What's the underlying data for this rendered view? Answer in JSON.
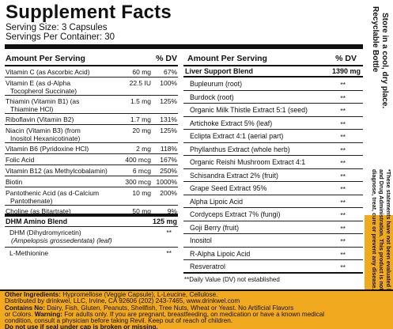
{
  "panel": {
    "title": "Supplement Facts",
    "serving_size": "Serving Size: 3 Capsules",
    "servings_per_container": "Servings Per Container: 30"
  },
  "left_column": {
    "header_name": "Amount Per Serving",
    "header_dv": "% DV",
    "rows": [
      {
        "name": "Vitamin C (as Ascorbic Acid)",
        "amount": "60 mg",
        "dv": "67%"
      },
      {
        "name": "Vitamin E (as d-Alpha",
        "name2": "Tocopherol Succinate)",
        "amount": "22.5 IU",
        "dv": "100%"
      },
      {
        "name": "Thiamin (Vitamin B1) (as",
        "name2": "Thiamine HCl)",
        "amount": "1.5 mg",
        "dv": "125%"
      },
      {
        "name": "Riboflavin (Vitamin B2)",
        "amount": "1.7 mg",
        "dv": "131%"
      },
      {
        "name": "Niacin (Vitamin B3) (from",
        "name2": "Inositol Hexanicotinate)",
        "amount": "20 mg",
        "dv": "125%"
      },
      {
        "name": "Vitamin B6 (Pyridoxine HCl)",
        "amount": "2 mg",
        "dv": "118%"
      },
      {
        "name": "Folic Acid",
        "amount": "400 mcg",
        "dv": "167%"
      },
      {
        "name": "Vitamin B12 (as Methylcobalamin)",
        "amount": "6 mcg",
        "dv": "250%"
      },
      {
        "name": "Biotin",
        "amount": "300 mcg",
        "dv": "1000%"
      },
      {
        "name": "Pantothenic Acid (as d-Calcium",
        "name2": "Pantothenate)",
        "amount": "10 mg",
        "dv": "200%"
      },
      {
        "name": "Choline (as Bitartrate)",
        "amount": "50 mg",
        "dv": "9%"
      }
    ],
    "blend": {
      "name": "DHM Amino Blend",
      "amount": "125 mg"
    },
    "blend_rows": [
      {
        "name": "DHM (Dihydromyricetin)",
        "name2": "(Ampelopsis grossedentata) (leaf)",
        "dv": "**"
      },
      {
        "name": "L-Methionine",
        "dv": "**"
      }
    ]
  },
  "right_column": {
    "header_name": "Amount Per Serving",
    "header_dv": "% DV",
    "blend": {
      "name": "Liver Support Blend",
      "amount": "1390 mg"
    },
    "rows": [
      {
        "name": "Bupleurum (root)",
        "dv": "**"
      },
      {
        "name": "Burdock (root)",
        "dv": "**"
      },
      {
        "name": "Organic Milk Thistle Extract 5:1 (seed)",
        "dv": "**"
      },
      {
        "name": "Artichoke Extract 5% (leaf)",
        "dv": "**"
      },
      {
        "name": "Eclipta Extract 4:1 (aerial part)",
        "dv": "**"
      },
      {
        "name": "Phyllanthus Extract (whole herb)",
        "dv": "**"
      },
      {
        "name": "Organic Reishi Mushroom Extract 4:1",
        "dv": "**"
      },
      {
        "name": "Schisandra Extract 2% (fruit)",
        "dv": "**"
      },
      {
        "name": "Grape Seed Extract 95%",
        "dv": "**"
      },
      {
        "name": "Alpha Lipoic Acid",
        "dv": "**"
      },
      {
        "name": "Cordyceps Extract 7% (fungi)",
        "dv": "**"
      },
      {
        "name": "Goji Berry (fruit)",
        "dv": "**"
      },
      {
        "name": "Inositol",
        "dv": "**"
      },
      {
        "name": "R-Alpha Lipoic Acid",
        "dv": "**"
      },
      {
        "name": "Resveratrol",
        "dv": "**"
      }
    ],
    "dv_note": "**Daily Value (DV) not established"
  },
  "side": {
    "recycle": "Recyclable Bottle",
    "store": "Store in a cool, dry place.",
    "fda_lines": [
      "*These statements have not been evaluated by the Food",
      "and Drug Administration. This product is not intended to",
      "diagnose, treat, cure or prevent any disease."
    ]
  },
  "bottom": {
    "ingredients_label": "Other Ingredients:",
    "ingredients_text": " Hypromellose (Veggie Capsule), L-Leucine, Cellulose.",
    "distributor": "Distributed by drinkwel, LLC, Irvine, CA 92606 (202) 243-7465, www.drinkwel.com",
    "contains_label": "Contains No:",
    "contains_text": " Dairy, Fish, Gluten, Peanuts, Shellfish, Tree Nuts, Wheat or Yeast. No Artificial Flavors",
    "warning_prefix": "or Colors. ",
    "warning_label": "Warning:",
    "warning_text": " For adults only. If you are pregnant, breastfeeding, on medication or have a known medical",
    "warning_text2": "condition, consult a physician before taking Revil. Keep out of reach of children.",
    "seal_warning": "Do not use if seal under cap is broken or missing."
  },
  "colors": {
    "accent_orange": "#f1a91f",
    "ink": "#111111"
  }
}
